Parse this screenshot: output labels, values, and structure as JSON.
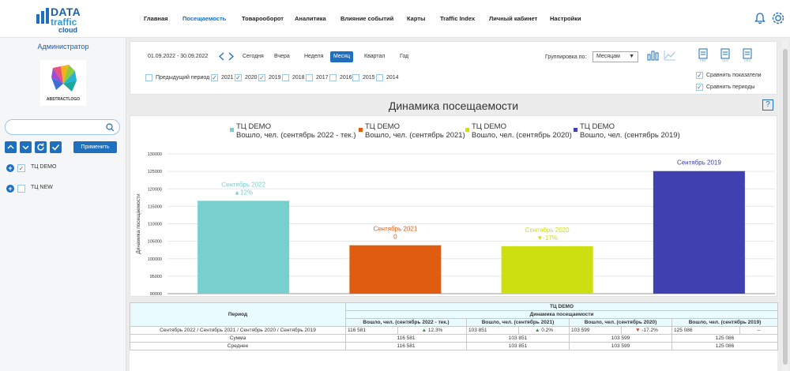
{
  "logo": {
    "line1": "DATA",
    "line2": "traffic",
    "line3": "cloud"
  },
  "nav": [
    {
      "label": "Главная",
      "active": false
    },
    {
      "label": "Посещаемость",
      "active": true
    },
    {
      "label": "Товарооборот",
      "active": false
    },
    {
      "label": "Аналитика",
      "active": false
    },
    {
      "label": "Влияние событий",
      "active": false
    },
    {
      "label": "Карты",
      "active": false
    },
    {
      "label": "Traffic Index",
      "active": false
    },
    {
      "label": "Личный кабинет",
      "active": false
    },
    {
      "label": "Настройки",
      "active": false
    }
  ],
  "header_icons": [
    "bell-icon",
    "gear-icon"
  ],
  "sidebar": {
    "admin_label": "Администратор",
    "company_logo_text": "ABSTRACTLOGO",
    "search_placeholder": "",
    "buttons": [
      "chevron-up-icon",
      "chevron-down-icon",
      "refresh-icon",
      "check-icon"
    ],
    "apply_label": "Применить",
    "objects": [
      {
        "label": "ТЦ DEMO",
        "checked": true
      },
      {
        "label": "ТЦ NEW",
        "checked": false
      }
    ]
  },
  "filter": {
    "date_range": "01.09.2022 - 30.09.2022",
    "periods": [
      {
        "label": "Сегодня",
        "state": "disabled"
      },
      {
        "label": "Вчера",
        "state": "disabled"
      },
      {
        "label": "Неделя",
        "state": "normal"
      },
      {
        "label": "Месяц",
        "state": "active"
      },
      {
        "label": "Квартал",
        "state": "normal"
      },
      {
        "label": "Год",
        "state": "normal"
      }
    ],
    "grouping_label": "Группировка по:",
    "grouping_value": "Месяцам",
    "export": [
      "PDF",
      "XLS",
      "CSV"
    ],
    "compare_years": [
      {
        "label": "Предыдущий период",
        "checked": false
      },
      {
        "label": "2021",
        "checked": true
      },
      {
        "label": "2020",
        "checked": true
      },
      {
        "label": "2019",
        "checked": true
      },
      {
        "label": "2018",
        "checked": false
      },
      {
        "label": "2017",
        "checked": false
      },
      {
        "label": "2016",
        "checked": false
      },
      {
        "label": "2015",
        "checked": false
      },
      {
        "label": "2014",
        "checked": false
      }
    ],
    "compare_metrics_label": "Сравнить показатели",
    "compare_periods_label": "Сравнить периоды"
  },
  "chart_title": "Динамика посещаемости",
  "help_label": "?",
  "chart_data": {
    "type": "bar",
    "ylabel": "Динамика посещаемости",
    "ylim": [
      90000,
      130000
    ],
    "yticks": [
      "130000",
      "125000",
      "120000",
      "115000",
      "110000",
      "105000",
      "100000",
      "95000",
      "90000"
    ],
    "categories": [
      "Сентябрь 2022",
      "Сентябрь 2021",
      "Сентябрь 2020",
      "Сентябрь 2019"
    ],
    "values": [
      116581,
      103851,
      103599,
      125086
    ],
    "bar_labels": [
      "Сентябрь 2022",
      "Сентябрь 2021",
      "Сентябрь 2020",
      "Сентябрь 2019"
    ],
    "bar_sublabels": [
      "▲12%",
      "0",
      "▼-17%",
      ""
    ],
    "colors": [
      "#77d0cd",
      "#e05c10",
      "#cddf10",
      "#4040b0"
    ],
    "series": [
      {
        "name": "ТЦ DEMO Вошло, чел. (сентябрь 2022 - тек.)",
        "line1": "ТЦ DEMO",
        "line2": "Вошло, чел. (сентябрь 2022 - тек.)"
      },
      {
        "name": "ТЦ DEMO Вошло, чел. (сентябрь 2021)",
        "line1": "ТЦ DEMO",
        "line2": "Вошло, чел. (сентябрь 2021)"
      },
      {
        "name": "ТЦ DEMO Вошло, чел. (сентябрь 2020)",
        "line1": "ТЦ DEMO",
        "line2": "Вошло, чел. (сентябрь 2020)"
      },
      {
        "name": "ТЦ DEMO Вошло, чел. (сентябрь 2019)",
        "line1": "ТЦ DEMO",
        "line2": "Вошло, чел. (сентябрь 2019)"
      }
    ],
    "grid": true
  },
  "table": {
    "object_header": "ТЦ DEMO",
    "metric_header": "Динамика посещаемости",
    "period_header": "Период",
    "columns": [
      "Вошло, чел. (сентябрь 2022 - тек.)",
      "Вошло, чел. (сентябрь 2021)",
      "Вошло, чел. (сентябрь 2020)",
      "Вошло, чел. (сентябрь 2019)"
    ],
    "row": {
      "period": "Сентябрь 2022 / Сентябрь 2021 / Сентябрь 2020 / Сентябрь 2019",
      "cells": [
        {
          "value": "116 581",
          "delta": "12.3%",
          "dir": "up"
        },
        {
          "value": "103 851",
          "delta": "0.2%",
          "dir": "up"
        },
        {
          "value": "103 599",
          "delta": "-17.2%",
          "dir": "down"
        },
        {
          "value": "125 086",
          "delta": "–",
          "dir": "none"
        }
      ]
    },
    "totals": [
      {
        "label": "Сумма",
        "values": [
          "116 581",
          "103 851",
          "103 599",
          "125 086"
        ]
      },
      {
        "label": "Среднее",
        "values": [
          "116 581",
          "103 851",
          "103 599",
          "125 086"
        ]
      }
    ]
  }
}
